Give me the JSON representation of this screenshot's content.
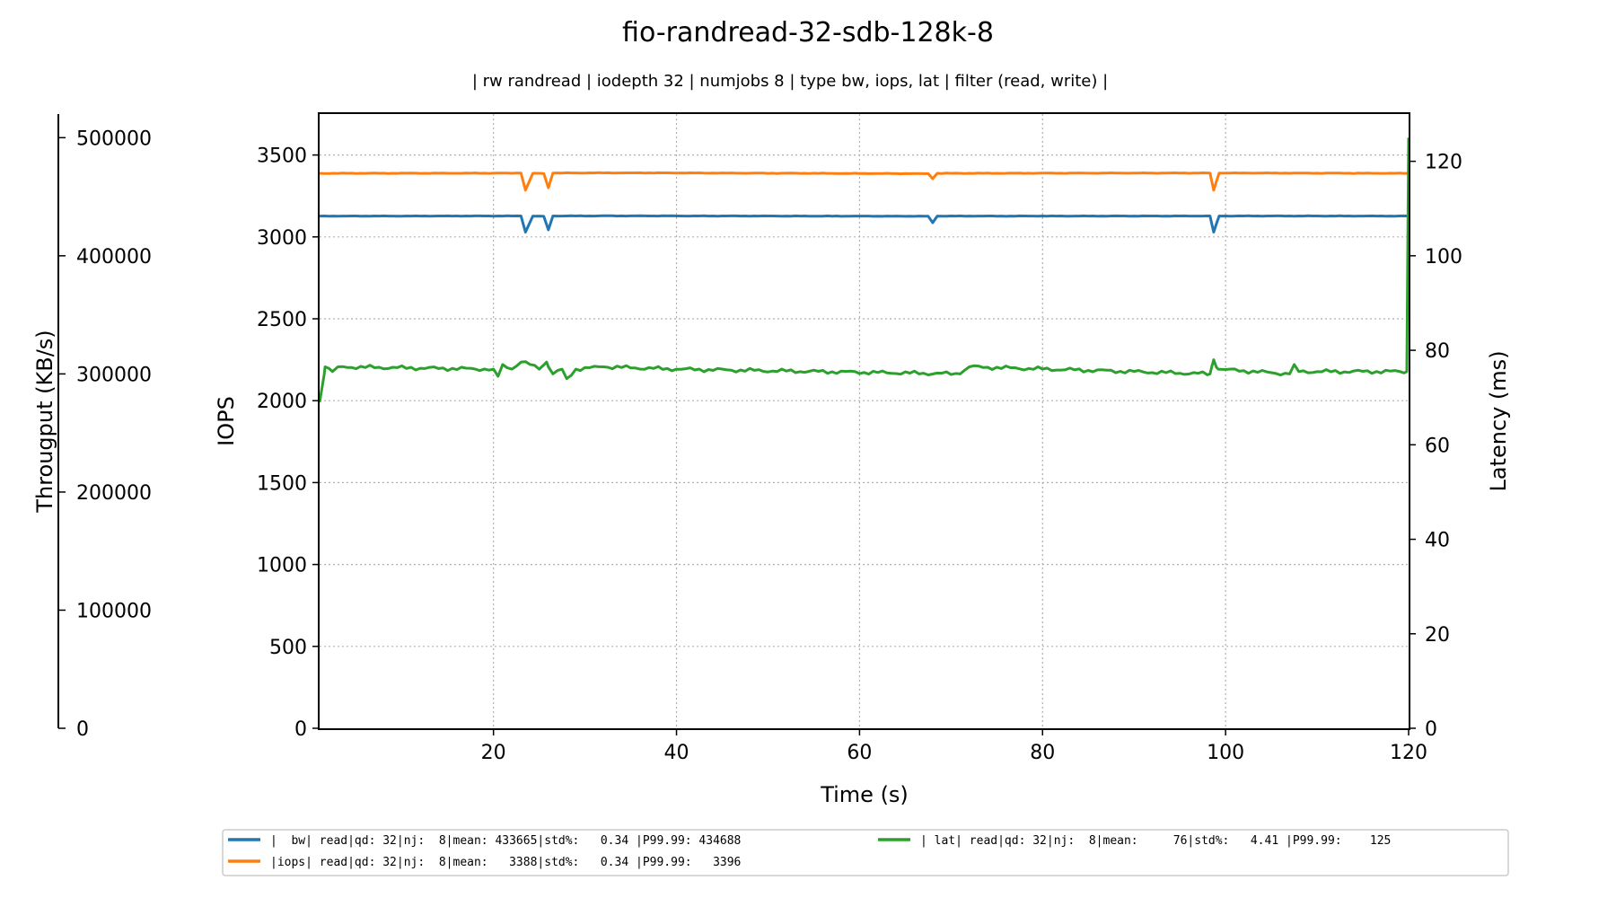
{
  "chart_data": {
    "type": "line",
    "title": "fio-randread-32-sdb-128k-8",
    "subtitle": "| rw randread | iodepth 32 | numjobs 8 | type bw, iops, lat | filter (read, write) |",
    "xlabel": "Time (s)",
    "ylabel_left": "IOPS",
    "ylabel_throughput": "Througput (KB/s)",
    "ylabel_right": "Latency (ms)",
    "xlim": [
      1,
      120
    ],
    "ylim_iops": [
      0,
      3750
    ],
    "ylim_throughput": [
      0,
      520000
    ],
    "ylim_latency": [
      0,
      130
    ],
    "x_ticks": [
      "20",
      "40",
      "60",
      "80",
      "100",
      "120"
    ],
    "iops_ticks": [
      "0",
      "500",
      "1000",
      "1500",
      "2000",
      "2500",
      "3000",
      "3500"
    ],
    "throughput_ticks": [
      "0",
      "100000",
      "200000",
      "300000",
      "400000",
      "500000"
    ],
    "latency_ticks": [
      "0",
      "20",
      "40",
      "60",
      "80",
      "100",
      "120"
    ],
    "grid": true,
    "legend_position": "bottom",
    "colors": {
      "bw": "#1f77b4",
      "iops": "#ff7f0e",
      "lat": "#2ca02c"
    },
    "series": [
      {
        "name": "|  bw| read|qd: 32|nj:  8|mean: 433665|std%:   0.34 |P99.99: 434688",
        "axis": "throughput",
        "base": 433665,
        "values_sparse": [
          [
            1,
            433600
          ],
          [
            23,
            433700
          ],
          [
            23.5,
            420000
          ],
          [
            24.3,
            433600
          ],
          [
            25.5,
            433400
          ],
          [
            26,
            422000
          ],
          [
            26.5,
            433700
          ],
          [
            35,
            433800
          ],
          [
            67.5,
            433500
          ],
          [
            68,
            428000
          ],
          [
            68.5,
            433600
          ],
          [
            98.3,
            433700
          ],
          [
            98.7,
            420000
          ],
          [
            99.3,
            433700
          ],
          [
            120,
            433665
          ]
        ]
      },
      {
        "name": "|iops| read|qd: 32|nj:  8|mean:   3388|std%:   0.34 |P99.99:   3396",
        "axis": "iops",
        "base": 3388,
        "values_sparse": [
          [
            1,
            3388
          ],
          [
            23,
            3389
          ],
          [
            23.5,
            3285
          ],
          [
            24.3,
            3388
          ],
          [
            25.5,
            3387
          ],
          [
            26,
            3300
          ],
          [
            26.5,
            3390
          ],
          [
            35,
            3391
          ],
          [
            67.5,
            3386
          ],
          [
            68,
            3355
          ],
          [
            68.5,
            3388
          ],
          [
            98.3,
            3390
          ],
          [
            98.7,
            3285
          ],
          [
            99.3,
            3390
          ],
          [
            120,
            3388
          ]
        ]
      },
      {
        "name": "| lat| read|qd: 32|nj:  8|mean:     76|std%:   4.41 |P99.99:    125",
        "axis": "latency",
        "base": 76,
        "values_sparse": [
          [
            1,
            69
          ],
          [
            1.6,
            76.5
          ],
          [
            2.4,
            75.5
          ],
          [
            3,
            76.5
          ],
          [
            20,
            76
          ],
          [
            20.5,
            74.5
          ],
          [
            21,
            77
          ],
          [
            22,
            76
          ],
          [
            23,
            77.5
          ],
          [
            24,
            77
          ],
          [
            25,
            76
          ],
          [
            25.8,
            77.5
          ],
          [
            26.5,
            75
          ],
          [
            27.5,
            76
          ],
          [
            28,
            74
          ],
          [
            29,
            76
          ],
          [
            32,
            76.5
          ],
          [
            40,
            76
          ],
          [
            71,
            75
          ],
          [
            72,
            76.5
          ],
          [
            98.3,
            75
          ],
          [
            98.7,
            78
          ],
          [
            99.2,
            76
          ],
          [
            107,
            75
          ],
          [
            107.5,
            77
          ],
          [
            108,
            75.5
          ],
          [
            119.8,
            75.5
          ],
          [
            120,
            125
          ]
        ]
      }
    ]
  }
}
